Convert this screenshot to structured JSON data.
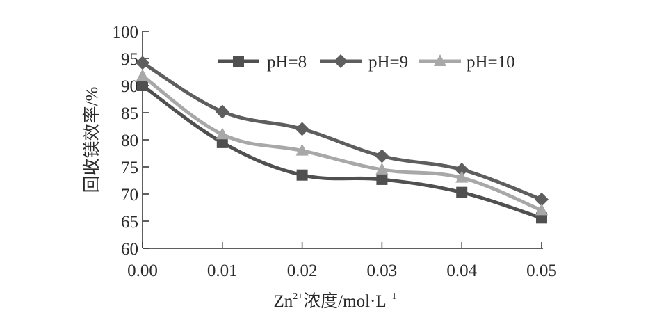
{
  "chart_data": {
    "type": "line",
    "title": "",
    "xlabel_main": "Zn",
    "xlabel_sup": "2+",
    "xlabel_rest": "浓度/mol·L",
    "xlabel_sup2": "−1",
    "ylabel": "回收镁效率/%",
    "x": [
      0.0,
      0.01,
      0.02,
      0.03,
      0.04,
      0.05
    ],
    "x_tick_labels": [
      "0.00",
      "0.01",
      "0.02",
      "0.03",
      "0.04",
      "0.05"
    ],
    "ylim": [
      60,
      100
    ],
    "y_ticks": [
      60,
      65,
      70,
      75,
      80,
      85,
      90,
      95,
      100
    ],
    "y_tick_labels": [
      "60",
      "65",
      "70",
      "75",
      "80",
      "85",
      "90",
      "95",
      "100"
    ],
    "grid": false,
    "legend_position": "top-right",
    "series": [
      {
        "name": "pH=8",
        "marker": "square",
        "color": "#505050",
        "values": [
          90.0,
          79.5,
          73.5,
          72.7,
          70.3,
          65.6
        ]
      },
      {
        "name": "pH=9",
        "marker": "diamond",
        "color": "#5e5e5e",
        "values": [
          94.2,
          85.2,
          82.0,
          77.0,
          74.5,
          69.0
        ]
      },
      {
        "name": "pH=10",
        "marker": "triangle",
        "color": "#a8a8a8",
        "values": [
          91.8,
          81.0,
          78.0,
          74.5,
          73.0,
          67.0
        ]
      }
    ]
  }
}
